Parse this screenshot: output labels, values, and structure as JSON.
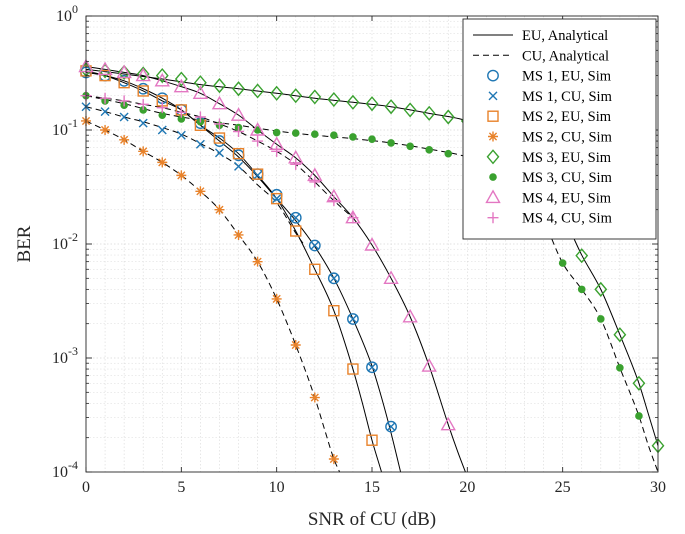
{
  "chart_data": {
    "type": "line",
    "title": "",
    "xlabel": "SNR of CU (dB)",
    "ylabel": "BER",
    "xlim": [
      0,
      30
    ],
    "ylim": [
      0.0001,
      1
    ],
    "yscale": "log",
    "grid": true,
    "legend_position": "top-right",
    "x_ticks": [
      0,
      5,
      10,
      15,
      20,
      25,
      30
    ],
    "y_ticks": [
      {
        "value": 0.0001,
        "base": "10",
        "exp": "-4"
      },
      {
        "value": 0.001,
        "base": "10",
        "exp": "-3"
      },
      {
        "value": 0.01,
        "base": "10",
        "exp": "-2"
      },
      {
        "value": 0.1,
        "base": "10",
        "exp": "-1"
      },
      {
        "value": 1,
        "base": "10",
        "exp": "0"
      }
    ],
    "legend": [
      {
        "label": "EU, Analytical",
        "style": "solid",
        "marker": "none",
        "color": "#000000"
      },
      {
        "label": "CU, Analytical",
        "style": "dashed",
        "marker": "none",
        "color": "#000000"
      },
      {
        "label": "MS 1, EU, Sim",
        "marker": "circle",
        "color": "#1f77b4"
      },
      {
        "label": "MS 1, CU, Sim",
        "marker": "x",
        "color": "#1f77b4"
      },
      {
        "label": "MS 2, EU, Sim",
        "marker": "square",
        "color": "#e8822a"
      },
      {
        "label": "MS 2, CU, Sim",
        "marker": "asterisk",
        "color": "#e8822a"
      },
      {
        "label": "MS 3, EU, Sim",
        "marker": "diamond",
        "color": "#3aa12f"
      },
      {
        "label": "MS 3, CU, Sim",
        "marker": "dot",
        "color": "#3aa12f"
      },
      {
        "label": "MS 4, EU, Sim",
        "marker": "triangle",
        "color": "#e377c2"
      },
      {
        "label": "MS 4, CU, Sim",
        "marker": "plus",
        "color": "#e377c2"
      }
    ],
    "analytical": [
      {
        "label": "EU, Analytical",
        "style": "solid",
        "x": [
          0,
          1,
          2,
          3,
          4,
          5,
          6,
          7,
          8,
          9,
          10,
          11,
          12,
          13,
          14,
          15,
          15.5,
          16,
          16.5
        ],
        "y": [
          0.32,
          0.3,
          0.27,
          0.23,
          0.19,
          0.15,
          0.11,
          0.08,
          0.058,
          0.039,
          0.025,
          0.016,
          0.0095,
          0.005,
          0.0022,
          0.00085,
          0.00045,
          0.00022,
          0.0001
        ]
      },
      {
        "label": "CU, Analytical",
        "style": "dashed",
        "x": [
          0,
          1,
          2,
          3,
          4,
          5,
          6,
          7,
          8,
          9,
          10,
          11,
          12,
          12.5,
          13,
          13.3
        ],
        "y": [
          0.12,
          0.1,
          0.082,
          0.065,
          0.052,
          0.04,
          0.029,
          0.02,
          0.012,
          0.007,
          0.0033,
          0.0013,
          0.00045,
          0.00024,
          0.00013,
          0.0001
        ]
      },
      {
        "label": "EU, Analytical",
        "style": "solid",
        "x": [
          0,
          1,
          2,
          3,
          4,
          5,
          6,
          7,
          8,
          9,
          10,
          11,
          12,
          13,
          14,
          14.5,
          15,
          15.5
        ],
        "y": [
          0.33,
          0.3,
          0.26,
          0.22,
          0.18,
          0.15,
          0.11,
          0.085,
          0.062,
          0.04,
          0.025,
          0.013,
          0.006,
          0.0026,
          0.0008,
          0.0004,
          0.00019,
          0.0001
        ]
      },
      {
        "label": "CU, Analytical",
        "style": "dashed",
        "x": [
          0,
          1,
          2,
          3,
          4,
          5,
          6,
          7,
          8,
          9,
          10,
          11,
          11.5
        ],
        "y": [
          0.16,
          0.145,
          0.13,
          0.118,
          0.105,
          0.092,
          0.076,
          0.062,
          0.048,
          0.033,
          0.023,
          0.0125,
          0.0095
        ]
      },
      {
        "label": "EU, Analytical",
        "style": "solid",
        "x": [
          0,
          2,
          4,
          6,
          8,
          10,
          12,
          14,
          16,
          18,
          20,
          21,
          22,
          23,
          24,
          25,
          26,
          27,
          28,
          29,
          29.5,
          30
        ],
        "y": [
          0.34,
          0.31,
          0.28,
          0.25,
          0.23,
          0.21,
          0.19,
          0.175,
          0.16,
          0.14,
          0.12,
          0.1,
          0.078,
          0.055,
          0.033,
          0.018,
          0.008,
          0.004,
          0.0016,
          0.0006,
          0.00032,
          0.00017
        ]
      },
      {
        "label": "CU, Analytical",
        "style": "dashed",
        "x": [
          0,
          2,
          4,
          6,
          8,
          10,
          12,
          14,
          16,
          18,
          20,
          21,
          22,
          23,
          24,
          25,
          26,
          27,
          28,
          29,
          29.5,
          30
        ],
        "y": [
          0.2,
          0.17,
          0.14,
          0.122,
          0.11,
          0.098,
          0.09,
          0.084,
          0.077,
          0.068,
          0.058,
          0.05,
          0.041,
          0.03,
          0.016,
          0.0068,
          0.004,
          0.0022,
          0.00082,
          0.00031,
          0.00017,
          0.0001
        ]
      },
      {
        "label": "EU, Analytical",
        "style": "solid",
        "x": [
          0,
          1,
          2,
          3,
          4,
          5,
          6,
          7,
          8,
          9,
          10,
          11,
          12,
          13,
          14,
          15,
          16,
          17,
          18,
          19,
          19.5,
          19.9
        ],
        "y": [
          0.36,
          0.34,
          0.32,
          0.3,
          0.27,
          0.24,
          0.21,
          0.17,
          0.135,
          0.1,
          0.075,
          0.057,
          0.04,
          0.026,
          0.017,
          0.0098,
          0.005,
          0.0023,
          0.00085,
          0.00026,
          0.00015,
          0.0001
        ]
      },
      {
        "label": "CU, Analytical",
        "style": "dashed",
        "x": [
          0,
          1,
          2,
          3,
          4,
          5,
          6,
          7,
          8,
          9,
          10,
          11,
          12,
          13,
          14
        ],
        "y": [
          0.2,
          0.19,
          0.18,
          0.168,
          0.157,
          0.143,
          0.13,
          0.113,
          0.097,
          0.08,
          0.065,
          0.05,
          0.035,
          0.024,
          0.017
        ]
      }
    ],
    "series": [
      {
        "name": "MS 1, EU, Sim",
        "marker": "circle",
        "color": "#1f77b4",
        "x": [
          0,
          1,
          2,
          3,
          4,
          5,
          6,
          7,
          8,
          9,
          10,
          11,
          12,
          13,
          14,
          15,
          16
        ],
        "y": [
          0.32,
          0.3,
          0.27,
          0.23,
          0.19,
          0.15,
          0.115,
          0.08,
          0.06,
          0.041,
          0.027,
          0.017,
          0.0097,
          0.005,
          0.0022,
          0.00083,
          0.00025
        ]
      },
      {
        "name": "MS 1, CU, Sim",
        "marker": "x",
        "color": "#1f77b4",
        "x": [
          0,
          1,
          2,
          3,
          4,
          5,
          6,
          7,
          8,
          9,
          10,
          11,
          12,
          13,
          14,
          15,
          16
        ],
        "y": [
          0.16,
          0.145,
          0.13,
          0.115,
          0.1,
          0.09,
          0.075,
          0.063,
          0.048,
          0.04,
          0.025,
          0.017,
          0.0097,
          0.005,
          0.0022,
          0.00083,
          0.00025
        ]
      },
      {
        "name": "MS 2, EU, Sim",
        "marker": "square",
        "color": "#e8822a",
        "x": [
          0,
          1,
          2,
          3,
          4,
          5,
          6,
          7,
          8,
          9,
          10,
          11,
          12,
          13,
          14,
          15
        ],
        "y": [
          0.33,
          0.3,
          0.26,
          0.22,
          0.18,
          0.15,
          0.11,
          0.085,
          0.062,
          0.041,
          0.025,
          0.013,
          0.006,
          0.0026,
          0.0008,
          0.00019
        ]
      },
      {
        "name": "MS 2, CU, Sim",
        "marker": "asterisk",
        "color": "#e8822a",
        "x": [
          0,
          1,
          2,
          3,
          4,
          5,
          6,
          7,
          8,
          9,
          10,
          11,
          12,
          13
        ],
        "y": [
          0.12,
          0.1,
          0.082,
          0.065,
          0.052,
          0.04,
          0.029,
          0.02,
          0.012,
          0.007,
          0.0033,
          0.0013,
          0.00045,
          0.00013
        ]
      },
      {
        "name": "MS 3, EU, Sim",
        "marker": "diamond",
        "color": "#3aa12f",
        "x": [
          0,
          1,
          2,
          3,
          4,
          5,
          6,
          7,
          8,
          9,
          10,
          11,
          12,
          13,
          14,
          15,
          16,
          17,
          18,
          19,
          20,
          26,
          27,
          28,
          29,
          30
        ],
        "y": [
          0.34,
          0.33,
          0.32,
          0.31,
          0.3,
          0.28,
          0.26,
          0.245,
          0.23,
          0.22,
          0.21,
          0.2,
          0.195,
          0.185,
          0.175,
          0.17,
          0.16,
          0.15,
          0.14,
          0.13,
          0.12,
          0.0079,
          0.004,
          0.0016,
          0.0006,
          0.00017
        ]
      },
      {
        "name": "MS 3, CU, Sim",
        "marker": "dot",
        "color": "#3aa12f",
        "x": [
          0,
          1,
          2,
          3,
          4,
          5,
          6,
          7,
          8,
          9,
          10,
          11,
          12,
          13,
          14,
          15,
          16,
          17,
          18,
          19,
          25,
          26,
          27,
          28,
          29
        ],
        "y": [
          0.2,
          0.18,
          0.165,
          0.15,
          0.135,
          0.125,
          0.118,
          0.11,
          0.105,
          0.1,
          0.095,
          0.094,
          0.092,
          0.09,
          0.087,
          0.083,
          0.077,
          0.072,
          0.067,
          0.062,
          0.0068,
          0.004,
          0.0022,
          0.00082,
          0.00031
        ]
      },
      {
        "name": "MS 4, EU, Sim",
        "marker": "triangle",
        "color": "#e377c2",
        "x": [
          0,
          1,
          2,
          3,
          4,
          5,
          6,
          7,
          8,
          9,
          10,
          11,
          12,
          13,
          14,
          15,
          16,
          17,
          18,
          19
        ],
        "y": [
          0.36,
          0.34,
          0.32,
          0.3,
          0.27,
          0.24,
          0.21,
          0.17,
          0.135,
          0.1,
          0.075,
          0.057,
          0.04,
          0.026,
          0.017,
          0.0098,
          0.005,
          0.0023,
          0.00085,
          0.00026
        ]
      },
      {
        "name": "MS 4, CU, Sim",
        "marker": "plus",
        "color": "#e377c2",
        "x": [
          0,
          1,
          2,
          3,
          4,
          5,
          6,
          7,
          8,
          9,
          10,
          11,
          12,
          13,
          14
        ],
        "y": [
          0.2,
          0.19,
          0.18,
          0.168,
          0.157,
          0.143,
          0.13,
          0.113,
          0.097,
          0.08,
          0.065,
          0.05,
          0.035,
          0.024,
          0.017
        ]
      }
    ]
  }
}
